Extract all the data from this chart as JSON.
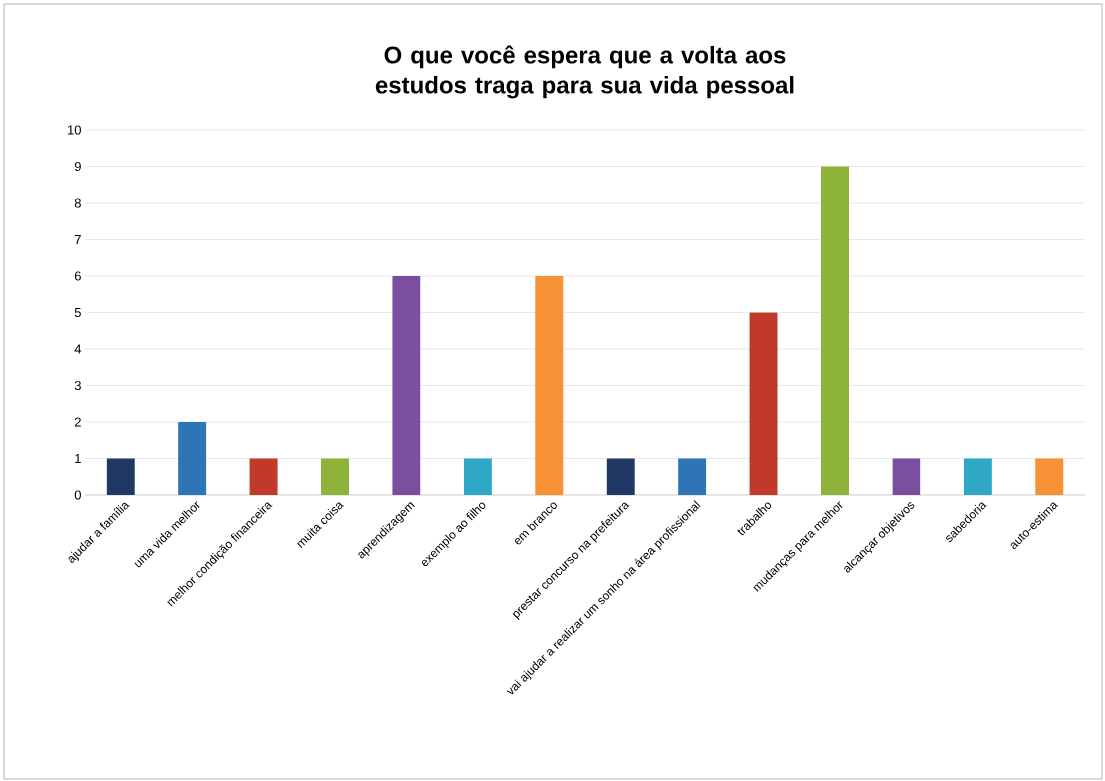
{
  "chart_data": {
    "type": "bar",
    "title": "O que você espera que a volta aos estudos traga para sua vida pessoal",
    "categories": [
      "ajudar a família",
      "uma vida melhor",
      "melhor condição financeira",
      "muita coisa",
      "aprendizagem",
      "exemplo ao filho",
      "em branco",
      "prestar concurso na prefeitura",
      "vai ajudar a realizar um sonho na área profissional",
      "trabalho",
      "mudanças para melhor",
      "alcançar objetivos",
      "sabedoria",
      "auto-estima"
    ],
    "values": [
      1,
      2,
      1,
      1,
      6,
      1,
      6,
      1,
      1,
      5,
      9,
      1,
      1,
      1
    ],
    "colors": [
      "#1f3864",
      "#2e75b6",
      "#c0392b",
      "#8db33a",
      "#7a4fa0",
      "#2fa8c8",
      "#f79236",
      "#1f3864",
      "#2e75b6",
      "#c0392b",
      "#8db33a",
      "#7a4fa0",
      "#2fa8c8",
      "#f79236"
    ],
    "ylim": [
      0,
      10
    ],
    "yticks": [
      0,
      1,
      2,
      3,
      4,
      5,
      6,
      7,
      8,
      9,
      10
    ],
    "grid": "y"
  }
}
